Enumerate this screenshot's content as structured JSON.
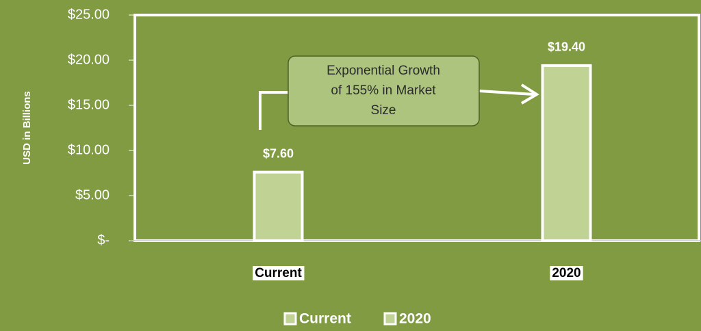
{
  "chart_data": {
    "type": "bar",
    "y_label": "USD in Billions",
    "categories": [
      "Current",
      "2020"
    ],
    "values": [
      7.6,
      19.4
    ],
    "value_labels": [
      "$7.60",
      "$19.40"
    ],
    "color": "#c0d294",
    "ylim": [
      0,
      25
    ],
    "yticks": [
      {
        "value": 0,
        "label": "$-"
      },
      {
        "value": 5,
        "label": "$5.00"
      },
      {
        "value": 10,
        "label": "$10.00"
      },
      {
        "value": 15,
        "label": "$15.00"
      },
      {
        "value": 20,
        "label": "$20.00"
      },
      {
        "value": 25,
        "label": "$25.00"
      }
    ],
    "annotation": [
      "Exponential Growth",
      "of 155% in Market",
      "Size"
    ],
    "legend": "bottom"
  }
}
